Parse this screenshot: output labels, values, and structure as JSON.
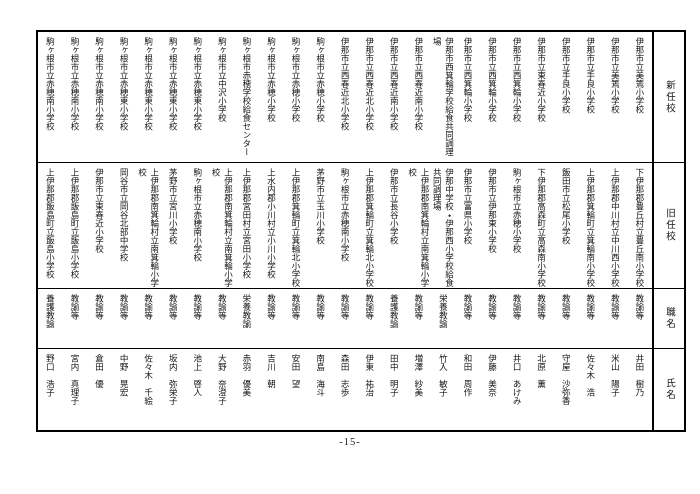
{
  "page": {
    "number_label": "-15-"
  },
  "table": {
    "headers": {
      "new_school": "新任校",
      "old_school": "旧任校",
      "position": "職名",
      "name": "氏名"
    },
    "people": [
      {
        "new_school": "伊那市立美篶小学校",
        "old_school": "下伊那郡豊丘村立豊丘南小学校",
        "position": "教諭等",
        "name": "井田　樹乃"
      },
      {
        "new_school": "伊那市立美篶小学校",
        "old_school": "上伊那郡中川村立中川西小学校",
        "position": "教諭等",
        "name": "米山　陽子"
      },
      {
        "new_school": "伊那市立手良小学校",
        "old_school": "上伊那郡箕輪町立箕輪南小学校",
        "position": "教諭等",
        "name": "佐々木　浩"
      },
      {
        "new_school": "伊那市立手良小学校",
        "old_school": "飯田市立松尾小学校",
        "position": "教諭等",
        "name": "守屋　沙弥香"
      },
      {
        "new_school": "伊那市立東春近小学校",
        "old_school": "下伊那郡高森町立高森南小学校",
        "position": "教諭等",
        "name": "北原　薫"
      },
      {
        "new_school": "伊那市立西箕輪小学校",
        "old_school": "駒ヶ根市立赤穂小学校",
        "position": "教諭等",
        "name": "井口　あけみ"
      },
      {
        "new_school": "伊那市立西箕輪小学校",
        "old_school": "伊那市立伊那東小学校",
        "position": "教諭等",
        "name": "伊藤　美奈"
      },
      {
        "new_school": "伊那市立西箕輪小学校",
        "old_school": "伊那市立富県小学校",
        "position": "教諭等",
        "name": "和田　周作"
      },
      {
        "new_school": "伊那市西箕輪学校給食共同調理\n場",
        "old_school": "伊那中学校・伊那西小学校給食\n共同調理場",
        "position": "栄養教諭",
        "name": "竹入　敏子"
      },
      {
        "new_school": "伊那市立西春近南小学校",
        "old_school": "上伊那郡南箕輪村立南箕輪小学\n校",
        "position": "教諭等",
        "name": "増澤　紗美"
      },
      {
        "new_school": "伊那市立西春近南小学校",
        "old_school": "伊那市立長谷小学校",
        "position": "養護教諭",
        "name": "田中　明子"
      },
      {
        "new_school": "伊那市立西春近北小学校",
        "old_school": "上伊那郡箕輪町立箕輪北小学校",
        "position": "教諭等",
        "name": "伊東　祐治"
      },
      {
        "new_school": "伊那市立西春近北小学校",
        "old_school": "駒ヶ根市立赤穂南小学校",
        "position": "教諭等",
        "name": "森田　志歩"
      },
      {
        "new_school": "駒ヶ根市立赤穂小学校",
        "old_school": "茅野市立玉川小学校",
        "position": "教諭等",
        "name": "南島　海斗"
      },
      {
        "new_school": "駒ヶ根市立赤穂小学校",
        "old_school": "上伊那郡箕輪町立箕輪北小学校",
        "position": "教諭等",
        "name": "安田　望"
      },
      {
        "new_school": "駒ヶ根市立赤穂小学校",
        "old_school": "上水内郡小川村立小川小学校",
        "position": "教諭等",
        "name": "吉川　朝"
      },
      {
        "new_school": "駒ヶ根市赤穂学校給食センター",
        "old_school": "上伊那郡宮田村立宮田小学校",
        "position": "栄養教諭",
        "name": "赤羽　優美"
      },
      {
        "new_school": "駒ヶ根市立中沢小学校",
        "old_school": "上伊那郡南箕輪村立南箕輪小学\n校",
        "position": "教諭等",
        "name": "大野　奈澄子"
      },
      {
        "new_school": "駒ヶ根市立赤穂東小学校",
        "old_school": "駒ヶ根市立赤穂南小学校",
        "position": "教諭等",
        "name": "池上　啓人"
      },
      {
        "new_school": "駒ヶ根市立赤穂東小学校",
        "old_school": "茅野市立宮川小学校",
        "position": "教諭等",
        "name": "坂内　弥栄子"
      },
      {
        "new_school": "駒ヶ根市立赤穂東小学校",
        "old_school": "上伊那郡南箕輪村立南箕輪小学\n校",
        "position": "教諭等",
        "name": "佐々木　千絵"
      },
      {
        "new_school": "駒ヶ根市立赤穂東小学校",
        "old_school": "岡谷市立岡谷北部中学校",
        "position": "教諭等",
        "name": "中野　晃宏"
      },
      {
        "new_school": "駒ヶ根市立赤穂南小学校",
        "old_school": "伊那市立東春近小学校",
        "position": "教諭等",
        "name": "倉田　優"
      },
      {
        "new_school": "駒ヶ根市立赤穂南小学校",
        "old_school": "上伊那郡飯島町立飯島小学校",
        "position": "教諭等",
        "name": "宮内　真理子"
      },
      {
        "new_school": "駒ヶ根市立赤穂南小学校",
        "old_school": "上伊那郡飯島町立飯島小学校",
        "position": "養護教諭",
        "name": "野口　浩子"
      }
    ]
  }
}
